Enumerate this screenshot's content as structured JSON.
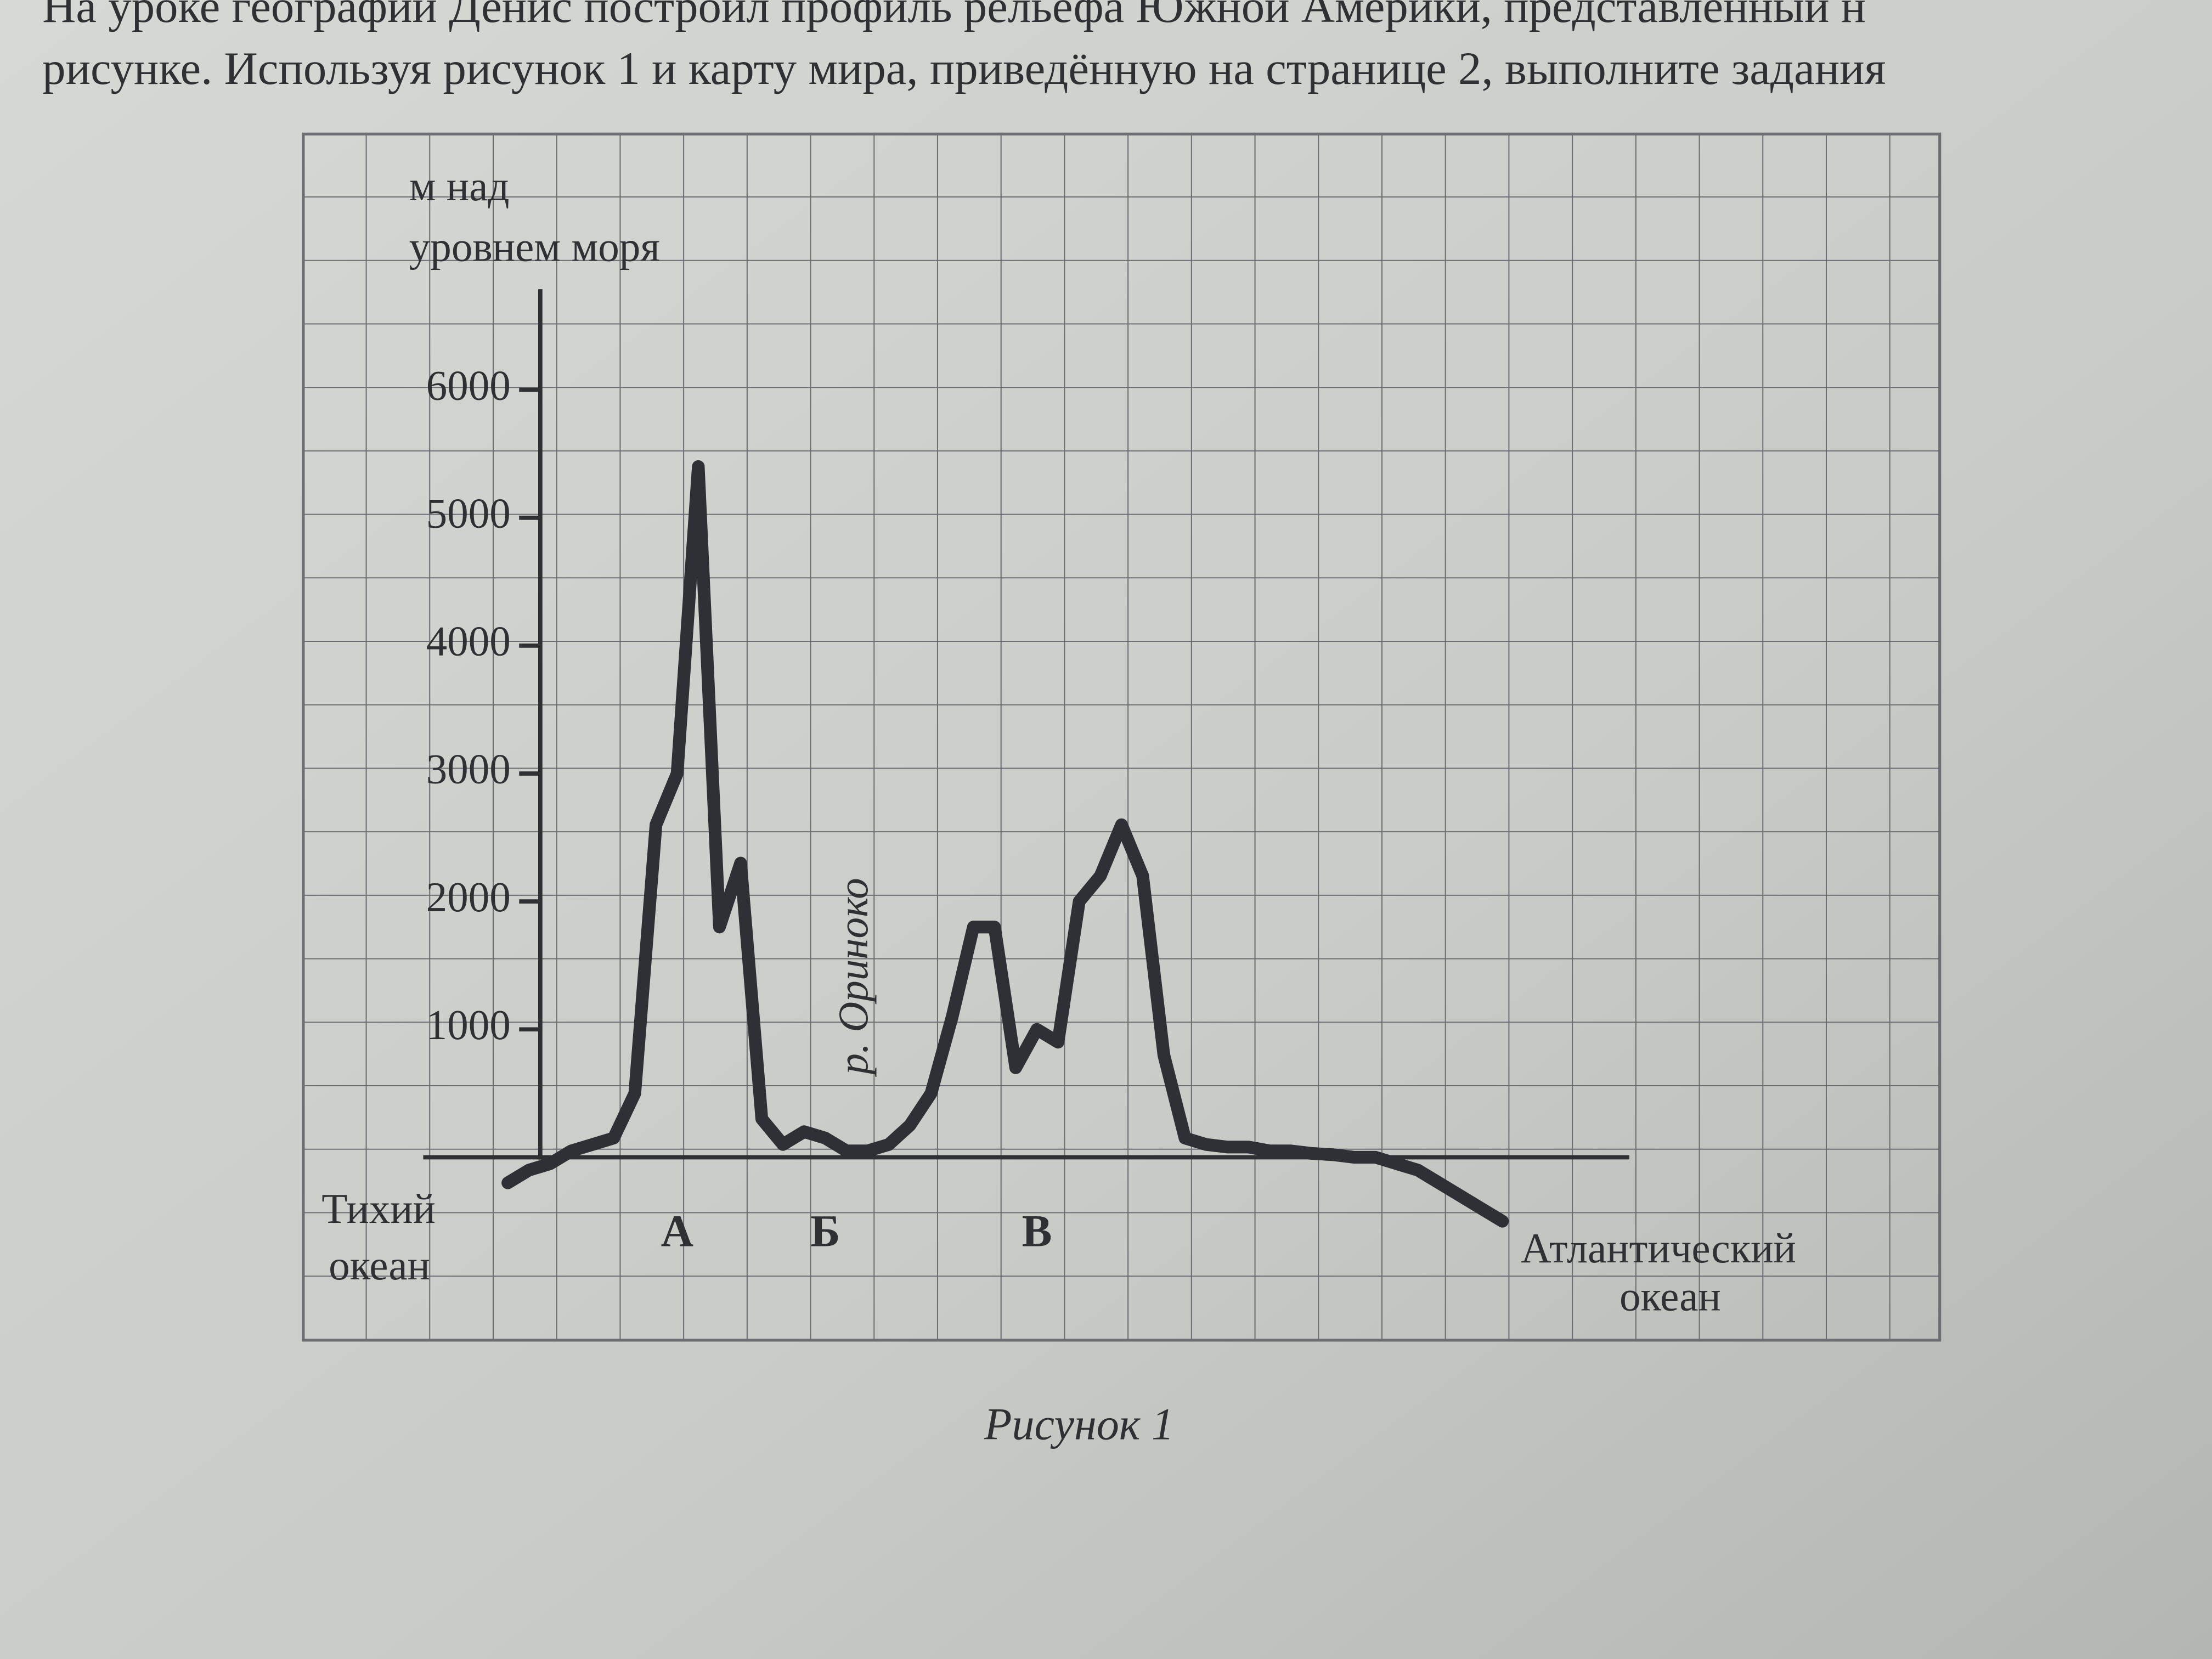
{
  "page_text": [
    "На уроке географии Денис построил профиль рельефа Южной Америки, представленный н",
    "рисунке. Используя рисунок 1 и карту мира, приведённую на странице 2, выполните задания"
  ],
  "chart_data": {
    "type": "line",
    "y_label": [
      "м над",
      "уровнем моря"
    ],
    "left_label": [
      "Тихий",
      "океан"
    ],
    "right_label": [
      "Атлантический",
      "океан"
    ],
    "river_label": "р. Ориноко",
    "categories": [
      null,
      null,
      null,
      null,
      null,
      null,
      null,
      null,
      "А",
      null,
      null,
      null,
      null,
      null,
      null,
      "Б",
      null,
      null,
      null,
      null,
      null,
      null,
      null,
      null,
      null,
      "В",
      null,
      null,
      null,
      null,
      null,
      null,
      null,
      null,
      null,
      null,
      null,
      null,
      null,
      null,
      null,
      null,
      null,
      null,
      null,
      null,
      null,
      null
    ],
    "values": [
      -200,
      -100,
      -50,
      50,
      100,
      150,
      500,
      2600,
      3000,
      5400,
      1800,
      2300,
      300,
      100,
      200,
      150,
      50,
      50,
      100,
      250,
      500,
      1100,
      1800,
      1800,
      700,
      1000,
      900,
      2000,
      2200,
      2600,
      2200,
      800,
      150,
      100,
      80,
      80,
      50,
      50,
      30,
      20,
      0,
      0,
      -50,
      -100,
      -200,
      -300,
      -400,
      -500
    ],
    "color": "#2d3034",
    "ylim": [
      -1430,
      8000
    ],
    "yticks": [
      1000,
      2000,
      3000,
      4000,
      5000,
      6000
    ]
  },
  "caption": "Рисунок 1"
}
